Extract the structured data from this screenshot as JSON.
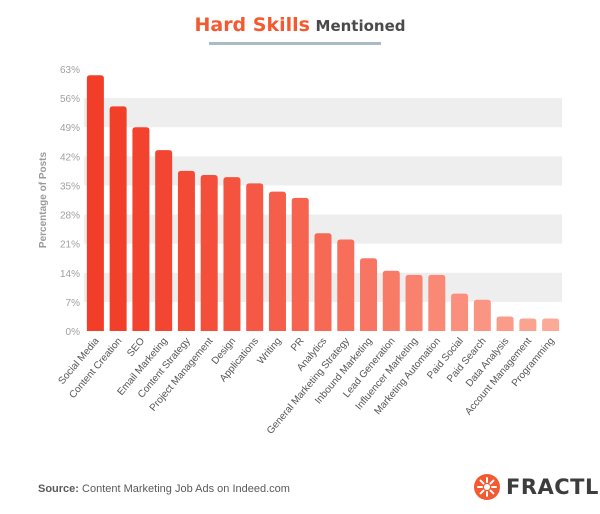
{
  "header": {
    "title_accent": "Hard Skills",
    "title_rest": "Mentioned"
  },
  "chart_data": {
    "type": "bar",
    "title": "Hard Skills Mentioned",
    "xlabel": "",
    "ylabel": "Percentage of Posts",
    "ylim": [
      0,
      63
    ],
    "yticks": [
      0,
      7,
      14,
      21,
      28,
      35,
      42,
      49,
      56,
      63
    ],
    "ytick_labels": [
      "0%",
      "7%",
      "14%",
      "21%",
      "28%",
      "35%",
      "42%",
      "49%",
      "56%",
      "63%"
    ],
    "grid": "alternating horizontal bands",
    "categories": [
      "Social Media",
      "Content Creation",
      "SEO",
      "Email Marketing",
      "Content Strategy",
      "Project Management",
      "Design",
      "Applications",
      "Writing",
      "PR",
      "Analytics",
      "General Marketing Strategy",
      "Inbound Marketing",
      "Lead Generation",
      "Influencer Marketing",
      "Marketing Automation",
      "Paid Social",
      "Paid Search",
      "Data Analysis",
      "Account Management",
      "Programming"
    ],
    "values": [
      61.5,
      54,
      49,
      43.5,
      38.5,
      37.5,
      37,
      35.5,
      33.5,
      32,
      23.5,
      22,
      17.5,
      14.5,
      13.5,
      13.5,
      9,
      7.5,
      3.5,
      3,
      3
    ],
    "colors": {
      "high": "#f23d28",
      "low": "#fcaa98"
    }
  },
  "footer": {
    "source_label": "Source:",
    "source_text": "Content Marketing Job Ads on Indeed.com",
    "logo_text": "FRACTL",
    "logo_color": "#f4592f"
  }
}
